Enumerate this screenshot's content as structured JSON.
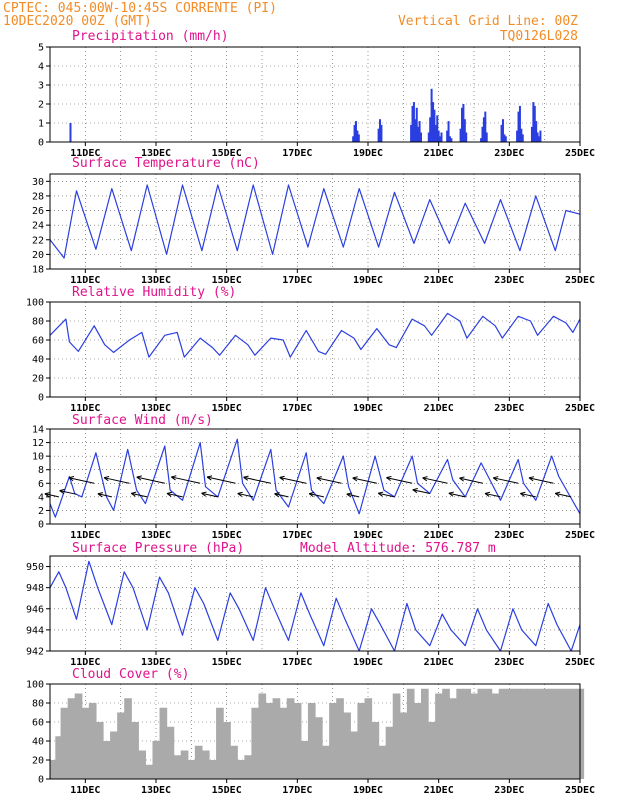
{
  "header": {
    "station": "CPTEC:   045:00W-10:45S   CORRENTE (PI)",
    "run": "10DEC2020 00Z (GMT)",
    "grid_note": "Vertical Grid Line: 00Z",
    "code": "TQ0126L028"
  },
  "colors": {
    "header": "#f28c28",
    "title": "#e0138c",
    "line": "#2b3fe0",
    "bar": "#2b3fe0",
    "cloud": "#aaaaaa"
  },
  "x_ticks": [
    "11DEC",
    "13DEC",
    "15DEC",
    "17DEC",
    "19DEC",
    "21DEC",
    "23DEC",
    "25DEC"
  ],
  "chart_data": [
    {
      "id": "precip",
      "type": "bar",
      "title": "Precipitation (mm/h)",
      "ylim": [
        0,
        5
      ],
      "yticks": [
        0,
        1,
        2,
        3,
        4,
        5
      ],
      "x_unit": "days since 10DEC 00Z",
      "x": [
        0.58,
        8.58,
        8.62,
        8.66,
        8.7,
        8.74,
        9.3,
        9.34,
        9.38,
        10.22,
        10.26,
        10.3,
        10.34,
        10.38,
        10.42,
        10.46,
        10.5,
        10.72,
        10.76,
        10.8,
        10.84,
        10.88,
        10.92,
        10.96,
        11.0,
        11.04,
        11.08,
        11.24,
        11.28,
        11.32,
        11.36,
        11.62,
        11.66,
        11.7,
        11.74,
        11.78,
        12.2,
        12.24,
        12.28,
        12.32,
        12.36,
        12.78,
        12.82,
        12.86,
        12.9,
        13.22,
        13.26,
        13.3,
        13.34,
        13.38,
        13.64,
        13.68,
        13.72,
        13.76,
        13.8,
        13.84,
        13.88
      ],
      "values": [
        1.0,
        0.3,
        0.9,
        1.1,
        0.6,
        0.4,
        0.7,
        1.2,
        0.9,
        0.9,
        1.9,
        2.1,
        1.2,
        1.8,
        0.8,
        1.1,
        0.5,
        0.5,
        1.3,
        2.8,
        2.1,
        1.7,
        0.9,
        1.4,
        0.6,
        0.3,
        0.5,
        0.6,
        1.1,
        0.3,
        0.2,
        0.7,
        1.8,
        2.0,
        1.2,
        0.5,
        0.2,
        0.8,
        1.3,
        1.6,
        0.5,
        0.9,
        1.2,
        0.4,
        0.3,
        0.6,
        1.6,
        1.9,
        0.7,
        0.4,
        0.8,
        2.1,
        1.9,
        1.1,
        0.5,
        0.3,
        0.6
      ]
    },
    {
      "id": "temp",
      "type": "line",
      "title": "Surface Temperature (nC)",
      "ylim": [
        18,
        31
      ],
      "yticks": [
        18,
        20,
        22,
        24,
        26,
        28,
        30
      ],
      "x_unit": "days since 10DEC 00Z",
      "x": [
        0.0,
        0.4,
        0.75,
        1.3,
        1.75,
        2.3,
        2.75,
        3.3,
        3.75,
        4.3,
        4.75,
        5.3,
        5.75,
        6.3,
        6.75,
        7.3,
        7.75,
        8.3,
        8.75,
        9.3,
        9.75,
        10.3,
        10.75,
        11.3,
        11.75,
        12.3,
        12.75,
        13.3,
        13.75,
        14.3,
        14.6,
        15.0
      ],
      "values": [
        22.0,
        19.5,
        28.7,
        20.7,
        29.0,
        20.5,
        29.5,
        20.0,
        29.5,
        20.5,
        29.5,
        20.5,
        29.5,
        20.0,
        29.5,
        21.0,
        29.0,
        21.0,
        29.0,
        21.0,
        28.5,
        21.5,
        27.5,
        21.5,
        27.0,
        21.5,
        27.5,
        20.5,
        28.0,
        20.5,
        26.0,
        25.5
      ]
    },
    {
      "id": "rh",
      "type": "line",
      "title": "Relative Humidity (%)",
      "ylim": [
        0,
        100
      ],
      "yticks": [
        0,
        20,
        40,
        60,
        80,
        100
      ],
      "x_unit": "days since 10DEC 00Z",
      "x": [
        0.0,
        0.45,
        0.55,
        0.8,
        1.25,
        1.55,
        1.8,
        2.25,
        2.6,
        2.8,
        3.25,
        3.6,
        3.8,
        4.25,
        4.6,
        4.8,
        5.25,
        5.6,
        5.8,
        6.25,
        6.6,
        6.8,
        7.25,
        7.6,
        7.8,
        8.25,
        8.6,
        8.8,
        9.25,
        9.6,
        9.8,
        10.25,
        10.6,
        10.8,
        11.25,
        11.6,
        11.8,
        12.25,
        12.6,
        12.8,
        13.25,
        13.6,
        13.8,
        14.25,
        14.6,
        14.8,
        15.0
      ],
      "values": [
        65,
        82,
        58,
        48,
        75,
        55,
        47,
        60,
        68,
        42,
        65,
        68,
        42,
        62,
        52,
        44,
        65,
        55,
        44,
        62,
        60,
        42,
        70,
        48,
        45,
        70,
        62,
        50,
        72,
        55,
        52,
        82,
        75,
        65,
        88,
        80,
        62,
        85,
        75,
        62,
        85,
        80,
        65,
        85,
        78,
        68,
        82
      ]
    },
    {
      "id": "wind",
      "type": "line",
      "title": "Surface Wind (m/s)",
      "ylim": [
        0,
        14
      ],
      "yticks": [
        0,
        2,
        4,
        6,
        8,
        10,
        12,
        14
      ],
      "x_unit": "days since 10DEC 00Z",
      "x": [
        0.0,
        0.15,
        0.55,
        0.7,
        0.9,
        1.3,
        1.6,
        1.8,
        2.2,
        2.45,
        2.7,
        3.25,
        3.4,
        3.75,
        4.25,
        4.4,
        4.75,
        5.3,
        5.45,
        5.75,
        6.25,
        6.4,
        6.75,
        7.25,
        7.4,
        7.75,
        8.3,
        8.45,
        8.75,
        9.2,
        9.45,
        9.75,
        10.25,
        10.4,
        10.75,
        11.25,
        11.4,
        11.75,
        12.2,
        12.45,
        12.75,
        13.25,
        13.4,
        13.75,
        14.2,
        14.4,
        15.0
      ],
      "values": [
        3.0,
        1.0,
        7.0,
        4.5,
        4.0,
        10.5,
        4.0,
        2.0,
        11.0,
        5.0,
        3.0,
        11.5,
        5.0,
        3.5,
        12.0,
        5.5,
        4.0,
        12.5,
        6.0,
        3.5,
        11.0,
        5.0,
        2.5,
        10.5,
        5.0,
        3.0,
        10.0,
        5.5,
        1.5,
        10.0,
        5.0,
        4.0,
        10.0,
        6.0,
        4.5,
        9.5,
        6.5,
        4.0,
        9.0,
        6.5,
        3.5,
        9.5,
        6.0,
        3.5,
        10.0,
        7.0,
        1.5
      ]
    },
    {
      "id": "press",
      "type": "line",
      "title": "Surface Pressure (hPa)",
      "extra_label": "Model Altitude: 576.787 m",
      "ylim": [
        942,
        951
      ],
      "yticks": [
        942,
        944,
        946,
        948,
        950
      ],
      "x_unit": "days since 10DEC 00Z",
      "x": [
        0.0,
        0.25,
        0.45,
        0.75,
        1.1,
        1.35,
        1.75,
        2.1,
        2.35,
        2.75,
        3.1,
        3.35,
        3.75,
        4.1,
        4.35,
        4.75,
        5.1,
        5.35,
        5.75,
        6.1,
        6.35,
        6.75,
        7.1,
        7.35,
        7.75,
        8.1,
        8.35,
        8.75,
        9.1,
        9.35,
        9.75,
        10.1,
        10.35,
        10.75,
        11.1,
        11.35,
        11.75,
        12.1,
        12.35,
        12.75,
        13.1,
        13.35,
        13.75,
        14.1,
        14.35,
        14.75,
        15.0
      ],
      "values": [
        948.0,
        949.5,
        948.0,
        945.0,
        950.5,
        948.0,
        944.5,
        949.5,
        948.0,
        944.0,
        949.0,
        947.5,
        943.5,
        948.0,
        946.5,
        943.0,
        947.5,
        946.0,
        943.0,
        948.0,
        946.0,
        943.0,
        947.5,
        945.5,
        942.5,
        947.0,
        945.0,
        942.0,
        946.0,
        944.5,
        942.0,
        946.5,
        944.0,
        942.5,
        945.5,
        944.0,
        942.5,
        946.0,
        944.0,
        942.0,
        946.0,
        944.0,
        942.5,
        946.5,
        944.5,
        942.0,
        944.5
      ]
    },
    {
      "id": "cloud",
      "type": "bar",
      "title": "Cloud Cover (%)",
      "ylim": [
        0,
        100
      ],
      "yticks": [
        0,
        20,
        40,
        60,
        80,
        100
      ],
      "x_unit": "days since 10DEC 00Z",
      "x": [
        0.0,
        0.15,
        0.3,
        0.5,
        0.7,
        0.9,
        1.1,
        1.3,
        1.5,
        1.7,
        1.9,
        2.1,
        2.3,
        2.5,
        2.7,
        2.9,
        3.1,
        3.3,
        3.5,
        3.7,
        3.9,
        4.1,
        4.3,
        4.5,
        4.7,
        4.9,
        5.1,
        5.3,
        5.5,
        5.7,
        5.9,
        6.1,
        6.3,
        6.5,
        6.7,
        6.9,
        7.1,
        7.3,
        7.5,
        7.7,
        7.9,
        8.1,
        8.3,
        8.5,
        8.7,
        8.9,
        9.1,
        9.3,
        9.5,
        9.7,
        9.9,
        10.1,
        10.3,
        10.5,
        10.7,
        10.9,
        11.1,
        11.3,
        11.5,
        11.7,
        11.9,
        12.1,
        12.3,
        12.5,
        12.7,
        12.9,
        13.1,
        13.3,
        13.5,
        13.7,
        13.9,
        14.1,
        14.3,
        14.5,
        14.7,
        14.9
      ],
      "values": [
        20,
        45,
        75,
        85,
        90,
        75,
        80,
        60,
        40,
        50,
        70,
        85,
        60,
        30,
        15,
        40,
        75,
        55,
        25,
        30,
        20,
        35,
        30,
        20,
        75,
        60,
        35,
        20,
        25,
        75,
        90,
        80,
        85,
        75,
        85,
        80,
        40,
        80,
        65,
        35,
        80,
        85,
        70,
        50,
        80,
        85,
        60,
        35,
        55,
        90,
        70,
        95,
        80,
        95,
        60,
        90,
        95,
        85,
        95,
        95,
        90,
        95,
        95,
        90,
        95,
        95,
        95,
        95,
        95,
        95,
        95,
        95,
        95,
        95,
        95,
        95
      ]
    }
  ]
}
